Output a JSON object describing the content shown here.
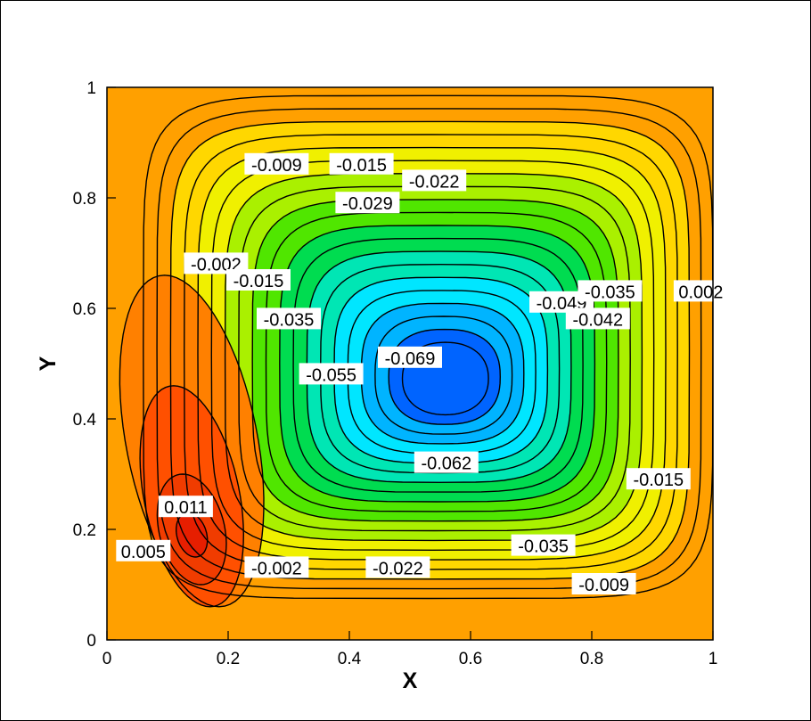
{
  "chart_data": {
    "type": "contour",
    "title": "",
    "xlabel": "X",
    "ylabel": "Y",
    "xlim": [
      0,
      1
    ],
    "ylim": [
      0,
      1
    ],
    "x_ticks": [
      "0",
      "0.2",
      "0.4",
      "0.6",
      "0.8",
      "1"
    ],
    "y_ticks": [
      "0",
      "0.2",
      "0.4",
      "0.6",
      "0.8",
      "1"
    ],
    "grid": false,
    "legend": "none",
    "colormap": [
      "#0a1ed2",
      "#0064ff",
      "#00b4ff",
      "#00e6ff",
      "#00e6b4",
      "#00dc50",
      "#50e600",
      "#aaf000",
      "#f0f000",
      "#ffd700",
      "#ffa000",
      "#ff8000",
      "#ff5000",
      "#e61e00"
    ],
    "background_color": "#ffa000",
    "primary_vortex": {
      "center": [
        0.56,
        0.47
      ],
      "min_value": -0.069
    },
    "secondary_vortex": {
      "center": [
        0.14,
        0.19
      ],
      "max_value": 0.011
    },
    "contour_labels": [
      {
        "text": "-0.009",
        "x": 0.28,
        "y": 0.86
      },
      {
        "text": "-0.015",
        "x": 0.42,
        "y": 0.86
      },
      {
        "text": "-0.022",
        "x": 0.54,
        "y": 0.83
      },
      {
        "text": "-0.029",
        "x": 0.43,
        "y": 0.79
      },
      {
        "text": "-0.002",
        "x": 0.18,
        "y": 0.68
      },
      {
        "text": "-0.015",
        "x": 0.25,
        "y": 0.65
      },
      {
        "text": "-0.035",
        "x": 0.3,
        "y": 0.58
      },
      {
        "text": "-0.055",
        "x": 0.37,
        "y": 0.48
      },
      {
        "text": "-0.069",
        "x": 0.5,
        "y": 0.51
      },
      {
        "text": "-0.049",
        "x": 0.75,
        "y": 0.61
      },
      {
        "text": "-0.042",
        "x": 0.81,
        "y": 0.58
      },
      {
        "text": "-0.035",
        "x": 0.83,
        "y": 0.63
      },
      {
        "text": "0.002",
        "x": 0.98,
        "y": 0.63
      },
      {
        "text": "-0.062",
        "x": 0.56,
        "y": 0.32
      },
      {
        "text": "-0.015",
        "x": 0.91,
        "y": 0.29
      },
      {
        "text": "-0.035",
        "x": 0.72,
        "y": 0.17
      },
      {
        "text": "-0.022",
        "x": 0.48,
        "y": 0.13
      },
      {
        "text": "-0.009",
        "x": 0.82,
        "y": 0.1
      },
      {
        "text": "0.011",
        "x": 0.13,
        "y": 0.24
      },
      {
        "text": "0.005",
        "x": 0.06,
        "y": 0.16
      },
      {
        "text": "-0.002",
        "x": 0.28,
        "y": 0.13
      }
    ]
  }
}
